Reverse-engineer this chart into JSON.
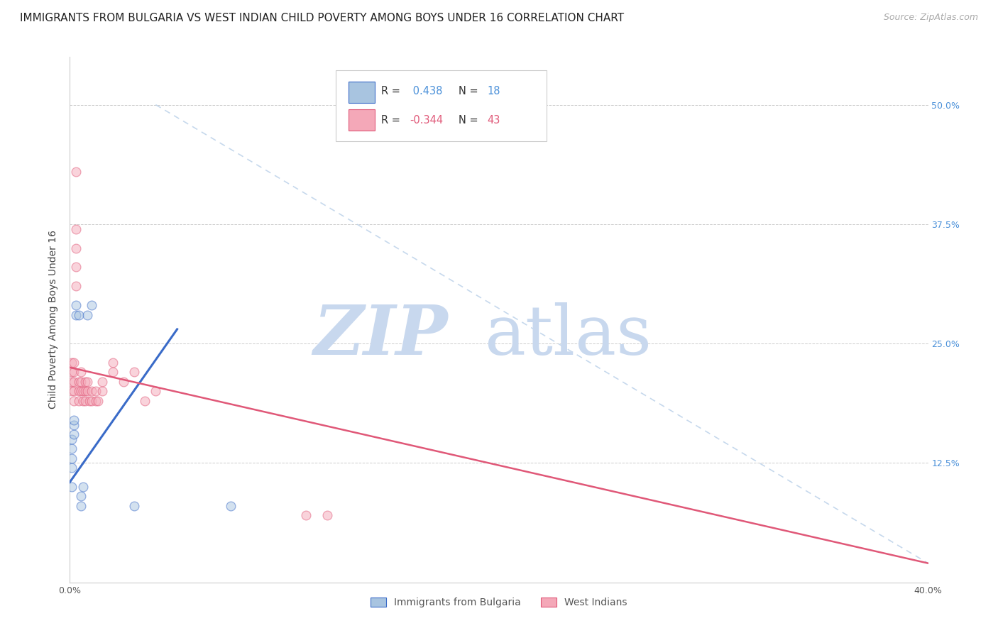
{
  "title": "IMMIGRANTS FROM BULGARIA VS WEST INDIAN CHILD POVERTY AMONG BOYS UNDER 16 CORRELATION CHART",
  "source": "Source: ZipAtlas.com",
  "ylabel": "Child Poverty Among Boys Under 16",
  "xmin": 0.0,
  "xmax": 0.4,
  "ymin": 0.0,
  "ymax": 0.55,
  "grid_color": "#cccccc",
  "color_bulgaria": "#a8c4e0",
  "color_westindian": "#f4a8b8",
  "line_color_bulgaria": "#3a6bc8",
  "line_color_westindian": "#e05878",
  "diagonal_color": "#b8cfe8",
  "watermark_zip_color": "#c8d8ee",
  "watermark_atlas_color": "#c8d8ee",
  "title_fontsize": 11,
  "axis_label_fontsize": 10,
  "tick_fontsize": 9,
  "scatter_size": 85,
  "scatter_alpha": 0.5,
  "bulgaria_x": [
    0.001,
    0.001,
    0.001,
    0.001,
    0.001,
    0.002,
    0.002,
    0.002,
    0.003,
    0.003,
    0.004,
    0.005,
    0.005,
    0.006,
    0.008,
    0.01,
    0.03,
    0.075
  ],
  "bulgaria_y": [
    0.12,
    0.13,
    0.14,
    0.15,
    0.1,
    0.155,
    0.165,
    0.17,
    0.28,
    0.29,
    0.28,
    0.08,
    0.09,
    0.1,
    0.28,
    0.29,
    0.08,
    0.08
  ],
  "westindian_x": [
    0.001,
    0.001,
    0.001,
    0.001,
    0.002,
    0.002,
    0.002,
    0.002,
    0.002,
    0.003,
    0.003,
    0.003,
    0.003,
    0.003,
    0.004,
    0.004,
    0.004,
    0.005,
    0.005,
    0.005,
    0.006,
    0.006,
    0.007,
    0.007,
    0.007,
    0.008,
    0.008,
    0.009,
    0.01,
    0.01,
    0.012,
    0.012,
    0.013,
    0.015,
    0.015,
    0.02,
    0.02,
    0.025,
    0.03,
    0.035,
    0.04,
    0.11,
    0.12
  ],
  "westindian_y": [
    0.2,
    0.21,
    0.22,
    0.23,
    0.19,
    0.2,
    0.21,
    0.22,
    0.23,
    0.31,
    0.33,
    0.35,
    0.37,
    0.43,
    0.19,
    0.2,
    0.21,
    0.2,
    0.21,
    0.22,
    0.19,
    0.2,
    0.19,
    0.2,
    0.21,
    0.2,
    0.21,
    0.19,
    0.19,
    0.2,
    0.19,
    0.2,
    0.19,
    0.2,
    0.21,
    0.22,
    0.23,
    0.21,
    0.22,
    0.19,
    0.2,
    0.07,
    0.07
  ],
  "legend_label_bulgaria": "Immigrants from Bulgaria",
  "legend_label_westindian": "West Indians",
  "r_bulgaria": 0.438,
  "n_bulgaria": 18,
  "r_westindian": -0.344,
  "n_westindian": 43,
  "blue_trend_x0": 0.0,
  "blue_trend_y0": 0.105,
  "blue_trend_x1": 0.05,
  "blue_trend_y1": 0.265,
  "pink_trend_x0": 0.0,
  "pink_trend_y0": 0.225,
  "pink_trend_x1": 0.4,
  "pink_trend_y1": 0.02
}
